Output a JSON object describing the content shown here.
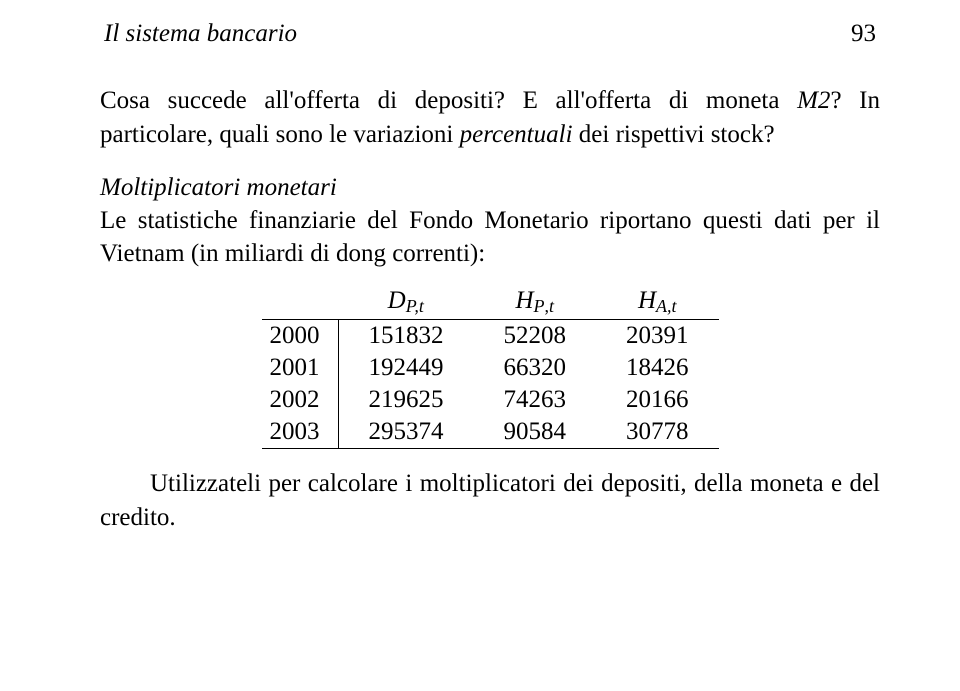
{
  "header": {
    "title": "Il sistema bancario",
    "page_number": "93"
  },
  "para1": {
    "text_before_m2": "Cosa succede all'offerta di depositi? E all'offerta di moneta ",
    "m2": "M2",
    "text_after_m2": "? In particolare, quali sono le variazioni ",
    "percentuali": "percentuali",
    "text_after_percentuali": " dei rispettivi stock?"
  },
  "subhead": "Moltiplicatori monetari",
  "para2": "Le statistiche finanziarie del Fondo Monetario riportano questi dati per il Vietnam (in miliardi di dong correnti):",
  "table": {
    "header": {
      "col1_sym": "D",
      "col1_sub": "P,t",
      "col2_sym": "H",
      "col2_sub1": "P",
      "col2_comma": ",",
      "col2_sub2": "t",
      "col3_sym": "H",
      "col3_sub": "A,t"
    },
    "rows": [
      {
        "year": "2000",
        "c1": "151832",
        "c2": "52208",
        "c3": "20391"
      },
      {
        "year": "2001",
        "c1": "192449",
        "c2": "66320",
        "c3": "18426"
      },
      {
        "year": "2002",
        "c1": "219625",
        "c2": "74263",
        "c3": "20166"
      },
      {
        "year": "2003",
        "c1": "295374",
        "c2": "90584",
        "c3": "30778"
      }
    ]
  },
  "para3": "Utilizzateli per calcolare i moltiplicatori dei depositi, della moneta e del credito."
}
